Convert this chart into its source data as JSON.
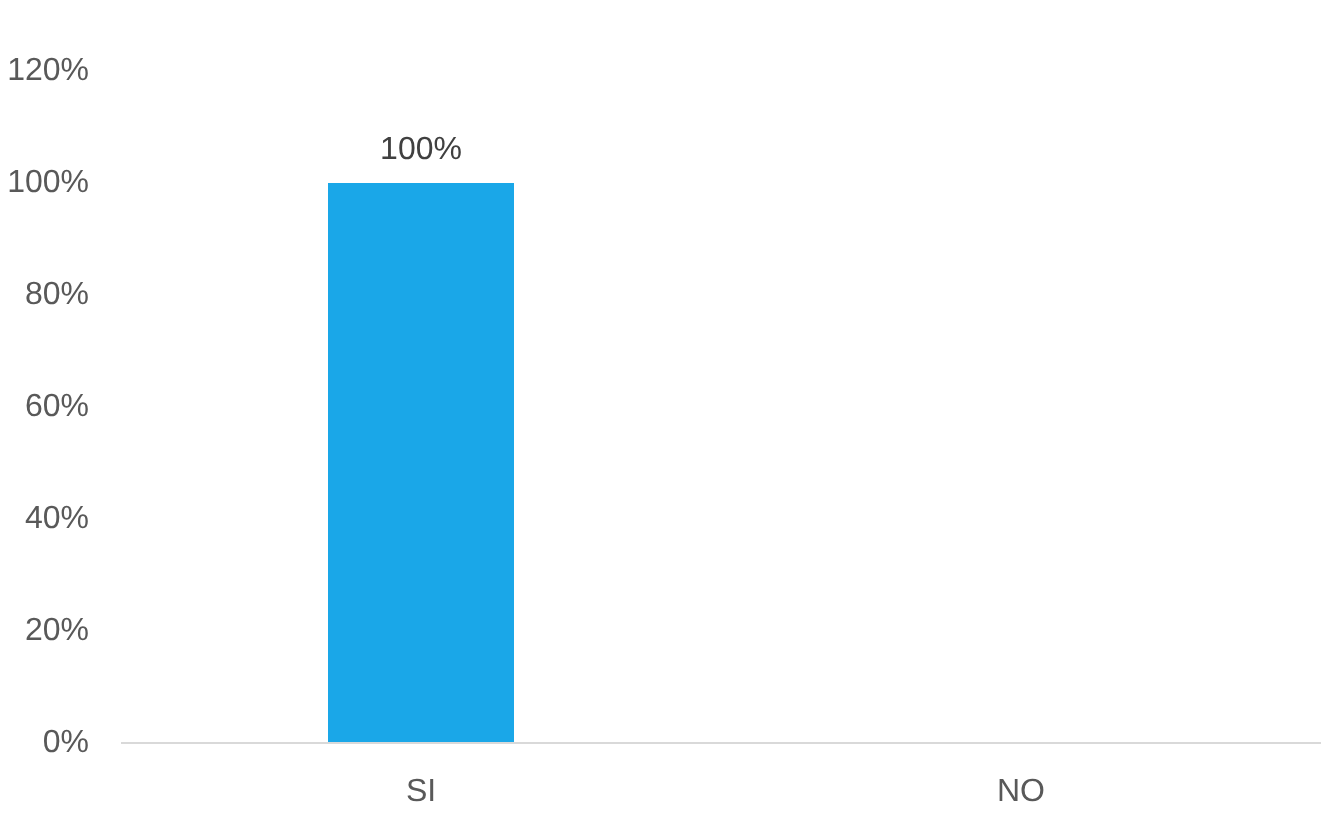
{
  "chart_data": {
    "type": "bar",
    "categories": [
      "SI",
      "NO"
    ],
    "values": [
      100,
      0
    ],
    "color": "#1aa7e8",
    "value_labels": [
      "100%",
      null
    ],
    "ylim": [
      0,
      120
    ],
    "yticks": [
      {
        "value": 0,
        "label": "0%"
      },
      {
        "value": 20,
        "label": "20%"
      },
      {
        "value": 40,
        "label": "40%"
      },
      {
        "value": 60,
        "label": "60%"
      },
      {
        "value": 80,
        "label": "80%"
      },
      {
        "value": 100,
        "label": "100%"
      },
      {
        "value": 120,
        "label": "120%"
      }
    ]
  }
}
